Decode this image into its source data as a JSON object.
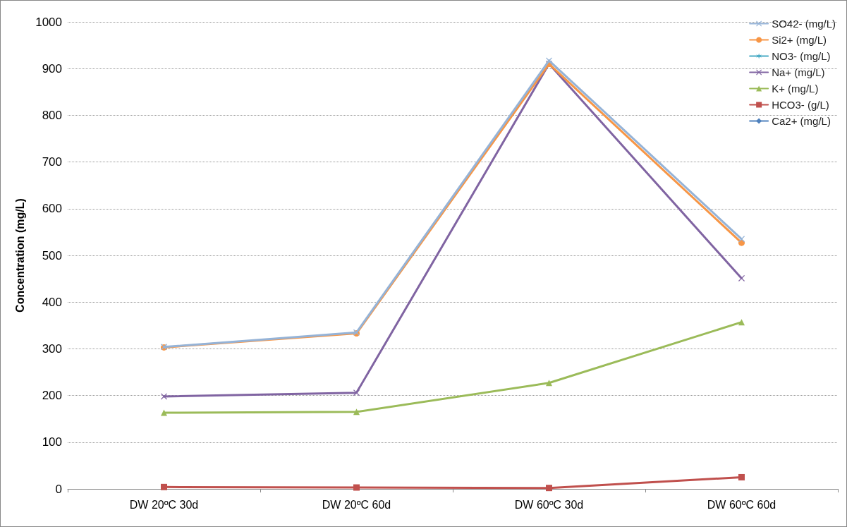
{
  "chart_data": {
    "type": "line",
    "ylabel": "Concentration (mg/L)",
    "categories": [
      "DW 20ºC 30d",
      "DW 20ºC 60d",
      "DW 60ºC 30d",
      "DW 60ºC 60d"
    ],
    "ylim": [
      0,
      1000
    ],
    "yticks": [
      0,
      100,
      200,
      300,
      400,
      500,
      600,
      700,
      800,
      900,
      1000
    ],
    "grid": "y",
    "legend": "top right",
    "series": [
      {
        "name": "SO42- (mg/L)",
        "color": "#95b3d7",
        "marker": "cross",
        "values": [
          304,
          335,
          917,
          535
        ]
      },
      {
        "name": "Si2+ (mg/L)",
        "color": "#f79646",
        "marker": "circle",
        "values": [
          303,
          333,
          910,
          527
        ]
      },
      {
        "name": "NO3- (mg/L)",
        "color": "#4bacc6",
        "marker": "star",
        "values": [
          null,
          null,
          null,
          null
        ]
      },
      {
        "name": "Na+ (mg/L)",
        "color": "#8064a2",
        "marker": "cross",
        "values": [
          198,
          206,
          910,
          451
        ]
      },
      {
        "name": "K+ (mg/L)",
        "color": "#9bbb59",
        "marker": "triangle",
        "values": [
          163,
          165,
          227,
          357
        ]
      },
      {
        "name": "HCO3- (g/L)",
        "color": "#c0504d",
        "marker": "square",
        "values": [
          4,
          3,
          2,
          25
        ]
      },
      {
        "name": "Ca2+ (mg/L)",
        "color": "#4f81bd",
        "marker": "diamond",
        "values": [
          null,
          null,
          null,
          null
        ]
      }
    ]
  }
}
